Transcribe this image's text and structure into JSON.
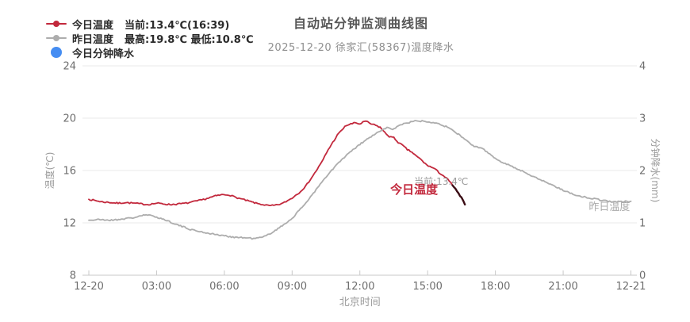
{
  "header": {
    "title": "自动站分钟监测曲线图",
    "subtitle": "2025-12-20 徐家汇(58367)温度降水"
  },
  "legend": {
    "items": [
      {
        "key": "today-temp",
        "label": "今日温度",
        "detail": "当前:13.4℃(16:39)",
        "color": "#c2283c",
        "marker": "line-dot"
      },
      {
        "key": "yesterday-temp",
        "label": "昨日温度",
        "detail": "最高:19.8℃ 最低:10.8℃",
        "color": "#adadad",
        "marker": "line-dot"
      },
      {
        "key": "today-precip",
        "label": "今日分钟降水",
        "detail": "",
        "color": "#458df2",
        "marker": "dot"
      }
    ]
  },
  "chart_data": {
    "type": "line",
    "title": "自动站分钟监测曲线图",
    "subtitle": "2025-12-20 徐家汇(58367)温度降水",
    "x_axis": {
      "label": "北京时间",
      "tick_hours": [
        0,
        3,
        6,
        9,
        12,
        15,
        18,
        21,
        24
      ],
      "tick_labels": [
        "12-20",
        "03:00",
        "06:00",
        "09:00",
        "12:00",
        "15:00",
        "18:00",
        "21:00",
        "12-21"
      ],
      "range_hours": [
        0,
        24
      ]
    },
    "y_left": {
      "label": "温度(℃)",
      "ticks": [
        8,
        12,
        16,
        20,
        24
      ],
      "range": [
        8,
        24
      ]
    },
    "y_right": {
      "label": "分钟降水(mm)",
      "ticks": [
        0,
        1,
        2,
        3,
        4
      ],
      "range": [
        0,
        4
      ]
    },
    "grid": true,
    "series": [
      {
        "name": "今日温度",
        "axis": "left",
        "color": "#c2283c",
        "tail_dark_from_hour": 16.05,
        "tail_dark_color": "#3a0c14",
        "points": [
          [
            0,
            13.8
          ],
          [
            0.3,
            13.7
          ],
          [
            0.6,
            13.6
          ],
          [
            1,
            13.55
          ],
          [
            1.3,
            13.5
          ],
          [
            1.6,
            13.55
          ],
          [
            2,
            13.5
          ],
          [
            2.3,
            13.45
          ],
          [
            2.6,
            13.4
          ],
          [
            3,
            13.5
          ],
          [
            3.3,
            13.45
          ],
          [
            3.6,
            13.4
          ],
          [
            4,
            13.45
          ],
          [
            4.3,
            13.5
          ],
          [
            4.6,
            13.6
          ],
          [
            5,
            13.75
          ],
          [
            5.3,
            13.9
          ],
          [
            5.6,
            14.05
          ],
          [
            5.9,
            14.15
          ],
          [
            6.2,
            14.15
          ],
          [
            6.5,
            13.95
          ],
          [
            6.8,
            13.8
          ],
          [
            7.1,
            13.65
          ],
          [
            7.4,
            13.5
          ],
          [
            7.7,
            13.4
          ],
          [
            8,
            13.3
          ],
          [
            8.3,
            13.35
          ],
          [
            8.6,
            13.5
          ],
          [
            9,
            13.9
          ],
          [
            9.3,
            14.3
          ],
          [
            9.6,
            14.8
          ],
          [
            10,
            15.8
          ],
          [
            10.3,
            16.6
          ],
          [
            10.6,
            17.6
          ],
          [
            11,
            18.7
          ],
          [
            11.2,
            19.1
          ],
          [
            11.4,
            19.45
          ],
          [
            11.6,
            19.55
          ],
          [
            11.8,
            19.65
          ],
          [
            12,
            19.55
          ],
          [
            12.2,
            19.75
          ],
          [
            12.35,
            19.7
          ],
          [
            12.5,
            19.55
          ],
          [
            12.7,
            19.45
          ],
          [
            12.9,
            19.3
          ],
          [
            13.1,
            18.9
          ],
          [
            13.3,
            18.6
          ],
          [
            13.5,
            18.5
          ],
          [
            13.7,
            18.15
          ],
          [
            13.9,
            17.9
          ],
          [
            14.1,
            17.6
          ],
          [
            14.3,
            17.4
          ],
          [
            14.5,
            17.1
          ],
          [
            14.7,
            16.85
          ],
          [
            14.9,
            16.5
          ],
          [
            15.1,
            16.3
          ],
          [
            15.3,
            16.15
          ],
          [
            15.5,
            15.85
          ],
          [
            15.7,
            15.6
          ],
          [
            15.9,
            15.3
          ],
          [
            16.1,
            14.9
          ],
          [
            16.3,
            14.4
          ],
          [
            16.5,
            13.9
          ],
          [
            16.65,
            13.4
          ]
        ]
      },
      {
        "name": "昨日温度",
        "axis": "left",
        "color": "#adadad",
        "points": [
          [
            0,
            12.2
          ],
          [
            0.5,
            12.25
          ],
          [
            1,
            12.2
          ],
          [
            1.5,
            12.3
          ],
          [
            2,
            12.4
          ],
          [
            2.3,
            12.55
          ],
          [
            2.6,
            12.6
          ],
          [
            3,
            12.45
          ],
          [
            3.5,
            12.15
          ],
          [
            4,
            11.8
          ],
          [
            4.5,
            11.5
          ],
          [
            5,
            11.3
          ],
          [
            5.5,
            11.15
          ],
          [
            6,
            11.0
          ],
          [
            6.5,
            10.9
          ],
          [
            7,
            10.85
          ],
          [
            7.3,
            10.8
          ],
          [
            7.7,
            10.9
          ],
          [
            8,
            11.15
          ],
          [
            8.5,
            11.7
          ],
          [
            9,
            12.35
          ],
          [
            9.5,
            13.3
          ],
          [
            10,
            14.4
          ],
          [
            10.5,
            15.5
          ],
          [
            11,
            16.5
          ],
          [
            11.5,
            17.3
          ],
          [
            12,
            18.0
          ],
          [
            12.5,
            18.6
          ],
          [
            13,
            19.1
          ],
          [
            13.2,
            19.3
          ],
          [
            13.45,
            19.1
          ],
          [
            13.7,
            19.45
          ],
          [
            14,
            19.6
          ],
          [
            14.5,
            19.8
          ],
          [
            15,
            19.75
          ],
          [
            15.5,
            19.6
          ],
          [
            16,
            19.2
          ],
          [
            16.5,
            18.6
          ],
          [
            17,
            17.9
          ],
          [
            17.5,
            17.6
          ],
          [
            18,
            16.9
          ],
          [
            18.5,
            16.5
          ],
          [
            19,
            16.1
          ],
          [
            19.5,
            15.7
          ],
          [
            20,
            15.3
          ],
          [
            20.5,
            14.9
          ],
          [
            21,
            14.5
          ],
          [
            21.5,
            14.15
          ],
          [
            22,
            13.95
          ],
          [
            22.5,
            13.8
          ],
          [
            23,
            13.65
          ],
          [
            23.5,
            13.6
          ],
          [
            24,
            13.65
          ]
        ]
      },
      {
        "name": "今日分钟降水",
        "axis": "right",
        "color": "#458df2",
        "points": []
      }
    ],
    "annotations": [
      {
        "key": "current-value-label",
        "text": "当前:13.4℃",
        "hour": 15.6,
        "temp": 15.15,
        "color": "#9b9b9b",
        "size": 12,
        "bold": false
      },
      {
        "key": "today-series-label",
        "text": "今日温度",
        "hour": 14.4,
        "temp": 14.5,
        "color": "#c2283c",
        "size": 15,
        "bold": true
      },
      {
        "key": "yesterday-series-label",
        "text": "昨日温度",
        "hour": 23.05,
        "temp": 13.2,
        "color": "#ababab",
        "size": 13,
        "bold": false
      }
    ],
    "stats": {
      "today_current": "13.4℃",
      "today_current_time": "16:39",
      "yesterday_max": "19.8℃",
      "yesterday_min": "10.8℃"
    }
  },
  "style": {
    "grid_color": "#e8e8e8",
    "axis_color": "#c8c8c8",
    "tick_label_color": "#6e6e6e",
    "axis_name_color": "#9b9b9b"
  }
}
